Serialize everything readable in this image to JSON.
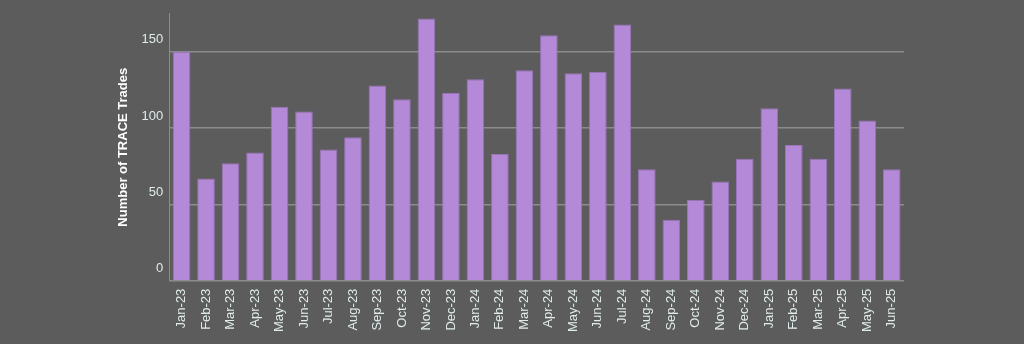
{
  "chart_data": {
    "type": "bar",
    "ylabel": "Number of TRACE Trades",
    "categories": [
      "Jan-23",
      "Feb-23",
      "Mar-23",
      "Apr-23",
      "May-23",
      "Jun-23",
      "Jul-23",
      "Aug-23",
      "Sep-23",
      "Oct-23",
      "Nov-23",
      "Dec-23",
      "Jan-24",
      "Feb-24",
      "Mar-24",
      "Apr-24",
      "May-24",
      "Jun-24",
      "Jul-24",
      "Aug-24",
      "Sep-24",
      "Oct-24",
      "Nov-24",
      "Dec-24",
      "Jan-25",
      "Feb-25",
      "Mar-25",
      "Apr-25",
      "May-25",
      "Jun-25"
    ],
    "values": [
      150,
      67,
      77,
      84,
      114,
      111,
      86,
      94,
      128,
      119,
      172,
      123,
      132,
      83,
      138,
      161,
      136,
      137,
      168,
      73,
      40,
      53,
      65,
      80,
      113,
      89,
      80,
      126,
      105,
      73
    ],
    "color": "#b48ad8",
    "ylim": [
      0,
      175
    ],
    "yticks": [
      0,
      50,
      100,
      150
    ],
    "grid": "y",
    "legend": false
  }
}
